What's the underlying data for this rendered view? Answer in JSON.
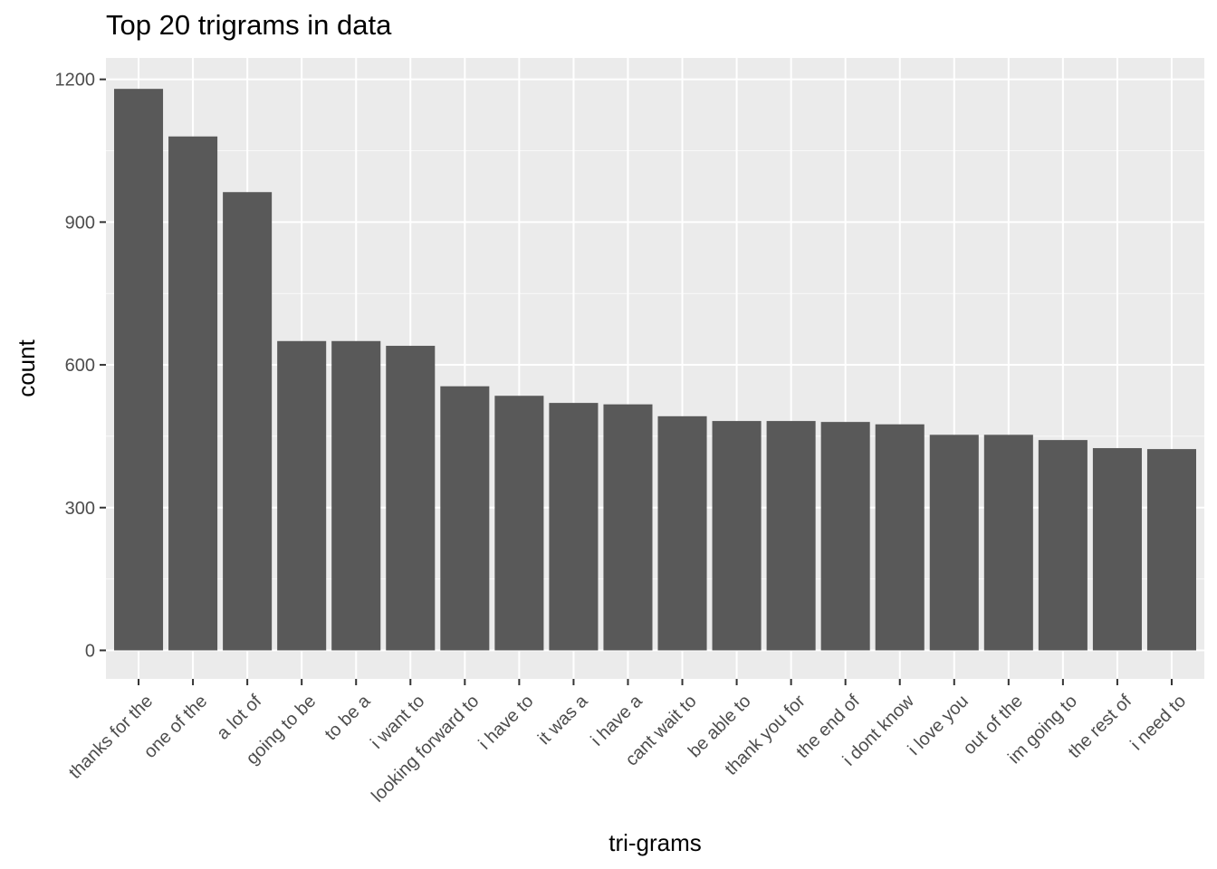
{
  "chart_data": {
    "type": "bar",
    "title": "Top 20 trigrams in data",
    "xlabel": "tri-grams",
    "ylabel": "count",
    "ylim": [
      -60,
      1245
    ],
    "yticks": [
      0,
      300,
      600,
      900,
      1200
    ],
    "grid": true,
    "legend": "none",
    "categories": [
      "thanks for the",
      "one of the",
      "a lot of",
      "going to be",
      "to be a",
      "i want to",
      "looking forward to",
      "i have to",
      "it was a",
      "i have a",
      "cant wait to",
      "be able to",
      "thank you for",
      "the end of",
      "i dont know",
      "i love you",
      "out of the",
      "im going to",
      "the rest of",
      "i need to"
    ],
    "values": [
      1180,
      1080,
      963,
      650,
      650,
      640,
      555,
      535,
      520,
      517,
      492,
      482,
      482,
      480,
      475,
      453,
      453,
      442,
      425,
      423
    ],
    "colors": {
      "bar": "#595959",
      "panel": "#ebebeb",
      "grid": "#ffffff"
    }
  }
}
